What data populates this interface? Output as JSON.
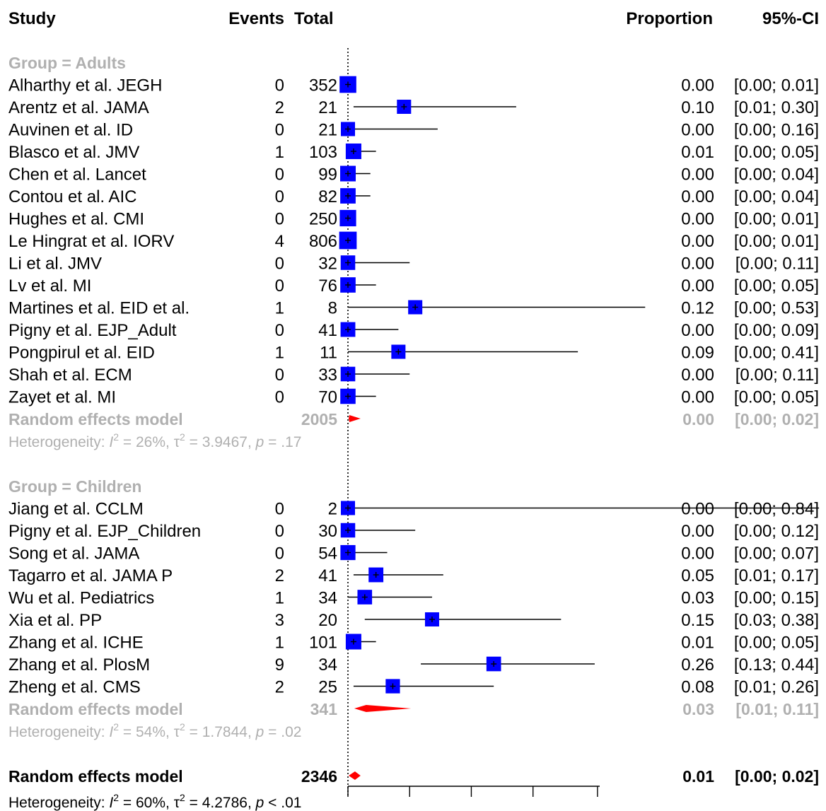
{
  "headers": {
    "study": "Study",
    "events": "Events",
    "total": "Total",
    "proportion": "Proportion",
    "ci": "95%-CI"
  },
  "chart_data": {
    "type": "forest",
    "xlim": [
      0,
      1
    ],
    "reference_line": 0,
    "colors": {
      "square": "#0000ff",
      "diamond": "#ff0000",
      "grey_text": "#b0b0b0"
    },
    "groups": [
      {
        "label": "Group = Adults",
        "studies": [
          {
            "study": "Alharthy et al. JEGH",
            "events": "0",
            "total": "352",
            "prop": 0.0,
            "lo": 0.0,
            "hi": 0.01,
            "prop_text": "0.00",
            "ci_text": "[0.00; 0.01]"
          },
          {
            "study": "Arentz et al. JAMA",
            "events": "2",
            "total": "21",
            "prop": 0.1,
            "lo": 0.01,
            "hi": 0.3,
            "prop_text": "0.10",
            "ci_text": "[0.01; 0.30]"
          },
          {
            "study": "Auvinen et al. ID",
            "events": "0",
            "total": "21",
            "prop": 0.0,
            "lo": 0.0,
            "hi": 0.16,
            "prop_text": "0.00",
            "ci_text": "[0.00; 0.16]"
          },
          {
            "study": "Blasco et al. JMV",
            "events": "1",
            "total": "103",
            "prop": 0.01,
            "lo": 0.0,
            "hi": 0.05,
            "prop_text": "0.01",
            "ci_text": "[0.00; 0.05]"
          },
          {
            "study": "Chen et al. Lancet",
            "events": "0",
            "total": "99",
            "prop": 0.0,
            "lo": 0.0,
            "hi": 0.04,
            "prop_text": "0.00",
            "ci_text": "[0.00; 0.04]"
          },
          {
            "study": "Contou et al. AIC",
            "events": "0",
            "total": "82",
            "prop": 0.0,
            "lo": 0.0,
            "hi": 0.04,
            "prop_text": "0.00",
            "ci_text": "[0.00; 0.04]"
          },
          {
            "study": "Hughes et al. CMI",
            "events": "0",
            "total": "250",
            "prop": 0.0,
            "lo": 0.0,
            "hi": 0.01,
            "prop_text": "0.00",
            "ci_text": "[0.00; 0.01]"
          },
          {
            "study": "Le Hingrat et al. IORV",
            "events": "4",
            "total": "806",
            "prop": 0.0,
            "lo": 0.0,
            "hi": 0.01,
            "prop_text": "0.00",
            "ci_text": "[0.00; 0.01]"
          },
          {
            "study": "Li et al. JMV",
            "events": "0",
            "total": "32",
            "prop": 0.0,
            "lo": 0.0,
            "hi": 0.11,
            "prop_text": "0.00",
            "ci_text": "[0.00; 0.11]"
          },
          {
            "study": "Lv et al. MI",
            "events": "0",
            "total": "76",
            "prop": 0.0,
            "lo": 0.0,
            "hi": 0.05,
            "prop_text": "0.00",
            "ci_text": "[0.00; 0.05]"
          },
          {
            "study": "Martines et al. EID et al.",
            "events": "1",
            "total": "8",
            "prop": 0.12,
            "lo": 0.0,
            "hi": 0.53,
            "prop_text": "0.12",
            "ci_text": "[0.00; 0.53]"
          },
          {
            "study": "Pigny et al. EJP_Adult",
            "events": "0",
            "total": "41",
            "prop": 0.0,
            "lo": 0.0,
            "hi": 0.09,
            "prop_text": "0.00",
            "ci_text": "[0.00; 0.09]"
          },
          {
            "study": "Pongpirul et al. EID",
            "events": "1",
            "total": "11",
            "prop": 0.09,
            "lo": 0.0,
            "hi": 0.41,
            "prop_text": "0.09",
            "ci_text": "[0.00; 0.41]"
          },
          {
            "study": "Shah et al. ECM",
            "events": "0",
            "total": "33",
            "prop": 0.0,
            "lo": 0.0,
            "hi": 0.11,
            "prop_text": "0.00",
            "ci_text": "[0.00; 0.11]"
          },
          {
            "study": "Zayet et al. MI",
            "events": "0",
            "total": "70",
            "prop": 0.0,
            "lo": 0.0,
            "hi": 0.05,
            "prop_text": "0.00",
            "ci_text": "[0.00; 0.05]"
          }
        ],
        "summary": {
          "label": "Random effects model",
          "total": "2005",
          "prop": 0.0,
          "lo": 0.0,
          "hi": 0.02,
          "prop_text": "0.00",
          "ci_text": "[0.00; 0.02]"
        },
        "heterogeneity": {
          "prefix": "Heterogeneity: ",
          "i2": "I",
          "i2_value": " = 26%, ",
          "tau": "τ",
          "tau_value": " = 3.9467, ",
          "p": "p",
          "p_value": " = .17"
        }
      },
      {
        "label": "Group = Children",
        "studies": [
          {
            "study": "Jiang et al. CCLM",
            "events": "0",
            "total": "2",
            "prop": 0.0,
            "lo": 0.0,
            "hi": 0.84,
            "prop_text": "0.00",
            "ci_text": "[0.00; 0.84]"
          },
          {
            "study": "Pigny et al. EJP_Children",
            "events": "0",
            "total": "30",
            "prop": 0.0,
            "lo": 0.0,
            "hi": 0.12,
            "prop_text": "0.00",
            "ci_text": "[0.00; 0.12]"
          },
          {
            "study": "Song et al. JAMA",
            "events": "0",
            "total": "54",
            "prop": 0.0,
            "lo": 0.0,
            "hi": 0.07,
            "prop_text": "0.00",
            "ci_text": "[0.00; 0.07]"
          },
          {
            "study": "Tagarro et al. JAMA P",
            "events": "2",
            "total": "41",
            "prop": 0.05,
            "lo": 0.01,
            "hi": 0.17,
            "prop_text": "0.05",
            "ci_text": "[0.01; 0.17]"
          },
          {
            "study": "Wu et al. Pediatrics",
            "events": "1",
            "total": "34",
            "prop": 0.03,
            "lo": 0.0,
            "hi": 0.15,
            "prop_text": "0.03",
            "ci_text": "[0.00; 0.15]"
          },
          {
            "study": "Xia et al. PP",
            "events": "3",
            "total": "20",
            "prop": 0.15,
            "lo": 0.03,
            "hi": 0.38,
            "prop_text": "0.15",
            "ci_text": "[0.03; 0.38]"
          },
          {
            "study": "Zhang et al. ICHE",
            "events": "1",
            "total": "101",
            "prop": 0.01,
            "lo": 0.0,
            "hi": 0.05,
            "prop_text": "0.01",
            "ci_text": "[0.00; 0.05]"
          },
          {
            "study": "Zhang et al. PlosM",
            "events": "9",
            "total": "34",
            "prop": 0.26,
            "lo": 0.13,
            "hi": 0.44,
            "prop_text": "0.26",
            "ci_text": "[0.13; 0.44]"
          },
          {
            "study": "Zheng et al. CMS",
            "events": "2",
            "total": "25",
            "prop": 0.08,
            "lo": 0.01,
            "hi": 0.26,
            "prop_text": "0.08",
            "ci_text": "[0.01; 0.26]"
          }
        ],
        "summary": {
          "label": "Random effects model",
          "total": "341",
          "prop": 0.03,
          "lo": 0.01,
          "hi": 0.11,
          "prop_text": "0.03",
          "ci_text": "[0.01; 0.11]"
        },
        "heterogeneity": {
          "prefix": "Heterogeneity: ",
          "i2": "I",
          "i2_value": " = 54%, ",
          "tau": "τ",
          "tau_value": " = 1.7844, ",
          "p": "p",
          "p_value": " = .02"
        }
      }
    ],
    "overall": {
      "label": "Random effects model",
      "total": "2346",
      "prop": 0.01,
      "lo": 0.0,
      "hi": 0.02,
      "prop_text": "0.01",
      "ci_text": "[0.00; 0.02]",
      "heterogeneity": {
        "prefix": "Heterogeneity: ",
        "i2": "I",
        "i2_value": " = 60%, ",
        "tau": "τ",
        "tau_value": " = 4.2786, ",
        "p": "p",
        "p_value": " < .01"
      }
    }
  }
}
